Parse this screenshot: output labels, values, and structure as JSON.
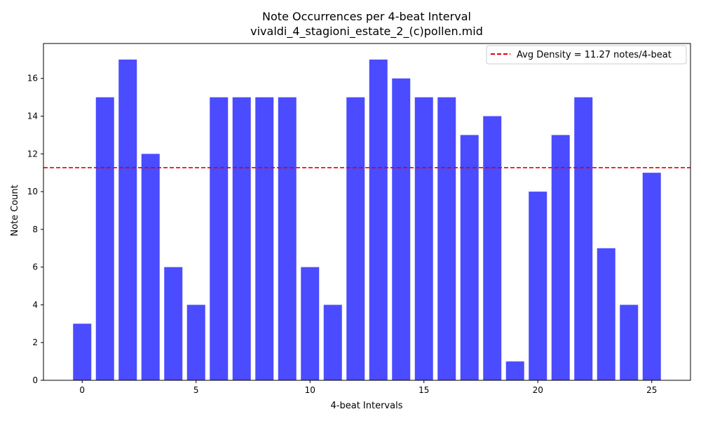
{
  "chart_data": {
    "type": "bar",
    "title": "Note Occurrences per 4-beat Interval",
    "subtitle": "vivaldi_4_stagioni_estate_2_(c)pollen.mid",
    "xlabel": "4-beat Intervals",
    "ylabel": "Note Count",
    "x": [
      0,
      1,
      2,
      3,
      4,
      5,
      6,
      7,
      8,
      9,
      10,
      11,
      12,
      13,
      14,
      15,
      16,
      17,
      18,
      19,
      20,
      21,
      22,
      23,
      24,
      25
    ],
    "values": [
      3,
      15,
      17,
      12,
      6,
      4,
      15,
      15,
      15,
      15,
      6,
      4,
      15,
      17,
      16,
      15,
      15,
      13,
      14,
      1,
      10,
      13,
      15,
      7,
      4,
      11
    ],
    "xlim": [
      -1.7,
      26.7
    ],
    "ylim": [
      0,
      17.85
    ],
    "xticks": [
      0,
      5,
      10,
      15,
      20,
      25
    ],
    "xtick_labels": [
      "0",
      "5",
      "10",
      "15",
      "20",
      "25"
    ],
    "yticks": [
      0,
      2,
      4,
      6,
      8,
      10,
      12,
      14,
      16
    ],
    "ytick_labels": [
      "0",
      "2",
      "4",
      "6",
      "8",
      "10",
      "12",
      "14",
      "16"
    ],
    "bar_color": "#4b4bff",
    "reference_line": {
      "value": 11.27,
      "label": "Avg Density = 11.27 notes/4-beat",
      "color": "#e00000",
      "style": "dashed"
    },
    "legend_position": "top-right",
    "grid": false
  }
}
